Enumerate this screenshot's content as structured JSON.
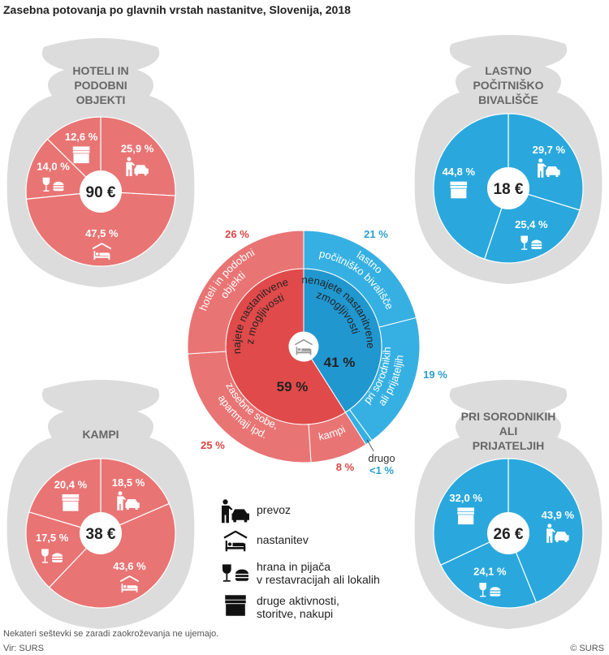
{
  "title": "Zasebna potovanja po glavnih vrstah nastanitve, Slovenija, 2018",
  "note": "Nekateri seštevki se zaradi zaokroževanja ne ujemajo.",
  "source": "Vir: SURS",
  "copyright": "© SURS",
  "colors": {
    "red_pie": "#e97474",
    "blue_pie": "#2aa8dd",
    "red_inner": "#e04a4a",
    "red_outer": "#e97474",
    "blue_inner": "#2197d0",
    "blue_outer": "#36b0e2",
    "bag": "#dcdcdc",
    "red_text": "#d94545",
    "blue_text": "#2a9fd0"
  },
  "legend": [
    {
      "icon": "transport-icon",
      "lines": [
        "prevoz"
      ]
    },
    {
      "icon": "accommodation-icon",
      "lines": [
        "nastanitev"
      ]
    },
    {
      "icon": "food-drink-icon",
      "lines": [
        "hrana in pijača",
        "v restavracijah ali lokalih"
      ]
    },
    {
      "icon": "shop-icon",
      "lines": [
        "druge aktivnosti,",
        "storitve, nakupi"
      ]
    }
  ],
  "chart_data": [
    {
      "type": "pie",
      "title": "HOTELI IN PODOBNI OBJEKTI",
      "title_lines": [
        "HOTELI IN",
        "PODOBNI",
        "OBJEKTI"
      ],
      "center_label": "90 €",
      "color": "red",
      "slices": [
        {
          "category": "prevoz",
          "icon": "transport-icon",
          "value": 25.9,
          "label": "25,9 %"
        },
        {
          "category": "nastanitev",
          "icon": "accommodation-icon",
          "value": 47.5,
          "label": "47,5 %"
        },
        {
          "category": "hrana in pijača",
          "icon": "food-drink-icon",
          "value": 14.0,
          "label": "14,0 %"
        },
        {
          "category": "druge aktivnosti",
          "icon": "shop-icon",
          "value": 12.6,
          "label": "12,6 %"
        }
      ]
    },
    {
      "type": "pie",
      "title": "LASTNO POČITNIŠKO BIVALIŠČE",
      "title_lines": [
        "LASTNO",
        "POČITNIŠKO",
        "BIVALIŠČE"
      ],
      "center_label": "18 €",
      "color": "blue",
      "slices": [
        {
          "category": "prevoz",
          "icon": "transport-icon",
          "value": 29.7,
          "label": "29,7 %"
        },
        {
          "category": "hrana in pijača",
          "icon": "food-drink-icon",
          "value": 25.4,
          "label": "25,4 %"
        },
        {
          "category": "druge aktivnosti",
          "icon": "shop-icon",
          "value": 44.8,
          "label": "44,8 %"
        }
      ]
    },
    {
      "type": "pie",
      "title": "KAMPI",
      "title_lines": [
        "KAMPI"
      ],
      "center_label": "38 €",
      "color": "red",
      "slices": [
        {
          "category": "prevoz",
          "icon": "transport-icon",
          "value": 18.5,
          "label": "18,5 %"
        },
        {
          "category": "nastanitev",
          "icon": "accommodation-icon",
          "value": 43.6,
          "label": "43,6 %"
        },
        {
          "category": "hrana in pijača",
          "icon": "food-drink-icon",
          "value": 17.5,
          "label": "17,5 %"
        },
        {
          "category": "druge aktivnosti",
          "icon": "shop-icon",
          "value": 20.4,
          "label": "20,4 %"
        }
      ]
    },
    {
      "type": "pie",
      "title": "PRI SORODNIKIH ALI PRIJATELJIH",
      "title_lines": [
        "PRI SORODNIKIH",
        "ALI",
        "PRIJATELJIH"
      ],
      "center_label": "26 €",
      "color": "blue",
      "slices": [
        {
          "category": "prevoz",
          "icon": "transport-icon",
          "value": 43.9,
          "label": "43,9 %"
        },
        {
          "category": "hrana in pijača",
          "icon": "food-drink-icon",
          "value": 24.1,
          "label": "24,1 %"
        },
        {
          "category": "druge aktivnosti",
          "icon": "shop-icon",
          "value": 32.0,
          "label": "32,0 %"
        }
      ]
    },
    {
      "type": "sunburst",
      "center_icon": "accommodation-icon",
      "inner": [
        {
          "lines": [
            "nenajete nastanitvene",
            "zmogljivosti"
          ],
          "value": 41,
          "label": "41 %",
          "color": "blue"
        },
        {
          "lines": [
            "najete nastanitvene",
            "z mogljivosti"
          ],
          "value": 59,
          "label": "59 %",
          "color": "red"
        }
      ],
      "outer": [
        {
          "lines": [
            "lastno",
            "počitniško bivališče"
          ],
          "value": 21,
          "label": "21 %",
          "color": "blue"
        },
        {
          "lines": [
            "pri sorodnikih",
            "ali prijateljih"
          ],
          "value": 19,
          "label": "19 %",
          "color": "blue"
        },
        {
          "name": "drugo",
          "lines": [],
          "value": 1,
          "label": "<1 %",
          "color": "blue"
        },
        {
          "lines": [
            "kampi"
          ],
          "value": 8,
          "label": "8 %",
          "color": "red"
        },
        {
          "lines": [
            "zasebne sobe,",
            "apartmaji ipd."
          ],
          "value": 25,
          "label": "25 %",
          "color": "red"
        },
        {
          "lines": [
            "hoteli in podobni",
            "objekti"
          ],
          "value": 26,
          "label": "26 %",
          "color": "red"
        }
      ]
    }
  ]
}
